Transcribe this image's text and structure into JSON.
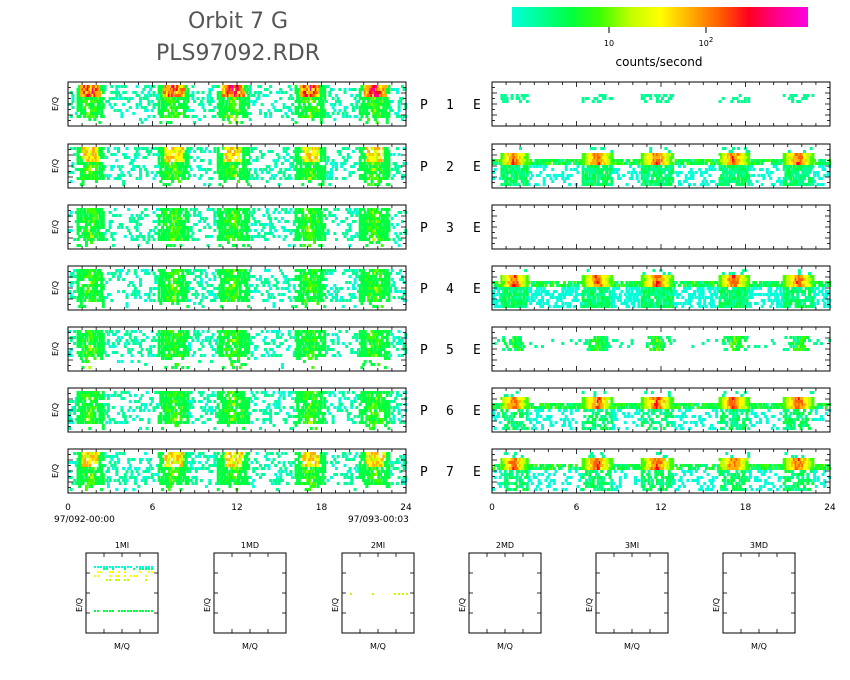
{
  "title": {
    "line1": "Orbit 7 G",
    "line2": "PLS97092.RDR"
  },
  "colorbar": {
    "label": "counts/second",
    "tick1": "10",
    "tick2_base": "10",
    "tick2_exp": "2",
    "colors": [
      "#00ffd8",
      "#00ff90",
      "#00ff40",
      "#40ff00",
      "#c0ff00",
      "#ffff00",
      "#ffb000",
      "#ff6000",
      "#ff0020",
      "#ff0090",
      "#ff00e0"
    ]
  },
  "panel_y_label": "E/Q",
  "rows": [
    {
      "p": "P",
      "n": "1",
      "e": "E"
    },
    {
      "p": "P",
      "n": "2",
      "e": "E"
    },
    {
      "p": "P",
      "n": "3",
      "e": "E"
    },
    {
      "p": "P",
      "n": "4",
      "e": "E"
    },
    {
      "p": "P",
      "n": "5",
      "e": "E"
    },
    {
      "p": "P",
      "n": "6",
      "e": "E"
    },
    {
      "p": "P",
      "n": "7",
      "e": "E"
    }
  ],
  "x_axis": {
    "ticks": [
      "0",
      "6",
      "12",
      "18",
      "24"
    ],
    "start_label": "97/092-00:00",
    "end_label": "97/093-00:03"
  },
  "mass_panels": [
    {
      "title": "1MI",
      "ylabel": "E/Q",
      "xlabel": "M/Q"
    },
    {
      "title": "1MD",
      "ylabel": "E/Q",
      "xlabel": "M/Q"
    },
    {
      "title": "2MI",
      "ylabel": "E/Q",
      "xlabel": "M/Q"
    },
    {
      "title": "2MD",
      "ylabel": "E/Q",
      "xlabel": "M/Q"
    },
    {
      "title": "3MI",
      "ylabel": "E/Q",
      "xlabel": "M/Q"
    },
    {
      "title": "3MD",
      "ylabel": "E/Q",
      "xlabel": "M/Q"
    }
  ],
  "chart_data": {
    "type": "heatmap",
    "title": "Orbit 7 G / PLS97092.RDR",
    "x_range_hours": [
      0,
      24
    ],
    "xticks": [
      0,
      6,
      12,
      18,
      24
    ],
    "colorscale_label": "counts/second",
    "colorscale_ticks": [
      "10",
      "10^2"
    ],
    "ion_panels": [
      "P 1",
      "P 2",
      "P 3",
      "P 4",
      "P 5",
      "P 6",
      "P 7"
    ],
    "electron_panels": [
      "E 1",
      "E 2",
      "E 3",
      "E 4",
      "E 5",
      "E 6",
      "E 7"
    ],
    "activity_windows_hours": [
      [
        0.5,
        2.5
      ],
      [
        6.3,
        8.5
      ],
      [
        10.5,
        12.8
      ],
      [
        16,
        18.2
      ],
      [
        20.6,
        22.8
      ]
    ],
    "mass_panels": [
      "1MI",
      "1MD",
      "2MI",
      "2MD",
      "3MI",
      "3MD"
    ],
    "mass_axes": {
      "x": "M/Q",
      "y": "E/Q"
    }
  }
}
